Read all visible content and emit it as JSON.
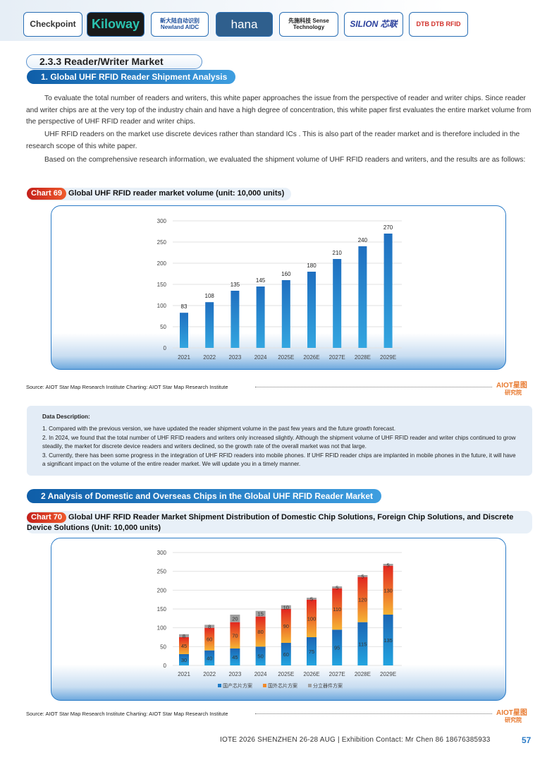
{
  "logos": [
    "Checkpoint",
    "Kiloway",
    "新大陆自动识别 Newland AIDC",
    "hana",
    "先施科技 Sense Technology",
    "SILION 芯联",
    "DTB DTB RFID"
  ],
  "section": {
    "title": "2.3.3 Reader/Writer Market",
    "sub1": "1. Global UHF RFID Reader Shipment Analysis",
    "sub2": "2 Analysis of Domestic and Overseas Chips in the Global UHF RFID Reader Market"
  },
  "paragraphs": [
    "To evaluate the total number of readers and writers, this white paper approaches the issue from the perspective of reader and writer chips. Since reader and writer chips are at the very top of the industry chain and have a high degree of concentration, this white paper first evaluates the entire market volume from the perspective of UHF RFID reader and writer chips.",
    "UHF RFID readers on the market use discrete devices rather than standard ICs . This is also part of the reader market and is therefore included in the research scope of this white paper.",
    "Based on the comprehensive research information, we evaluated the shipment volume of UHF RFID readers and writers, and the results are as follows:"
  ],
  "chart69": {
    "tag": "Chart 69",
    "title": "Global UHF RFID reader market volume (unit: 10,000 units)"
  },
  "chart70": {
    "tag": "Chart 70",
    "title": "Global UHF RFID Reader Market Shipment Distribution of Domestic Chip Solutions, Foreign Chip Solutions, and Discrete Device Solutions (Unit: 10,000 units)"
  },
  "source": "Source: AIOT Star Map Research Institute  Charting: AIOT Star Map Research Institute",
  "watermark": "AIOT星图 研究院",
  "description": {
    "title": "Data Description:",
    "items": [
      "1. Compared with the previous version, we have updated the reader shipment volume in the past few years and the future growth forecast.",
      "2. In 2024, we found that the total number of UHF RFID readers and writers only increased slightly. Although the shipment volume of UHF RFID reader and writer chips continued to grow steadily, the market for discrete device readers and writers declined, so the growth rate of the overall market was not that large.",
      "3. Currently, there has been some progress in the integration of UHF RFID readers into mobile phones. If UHF RFID reader chips are implanted in mobile phones in the future, it will have a significant impact on the volume of the entire reader market. We will update you in a timely manner."
    ]
  },
  "footer": {
    "text": "IOTE 2026 SHENZHEN 26-28 AUG  | Exhibition Contact:  Mr Chen 86 18676385933",
    "page": "57"
  },
  "chart_data": [
    {
      "type": "bar",
      "categories": [
        "2021",
        "2022",
        "2023",
        "2024",
        "2025E",
        "2026E",
        "2027E",
        "2028E",
        "2029E"
      ],
      "values": [
        83,
        108,
        135,
        145,
        160,
        180,
        210,
        240,
        270
      ],
      "ylim": [
        0,
        300
      ],
      "yticks": [
        0,
        50,
        100,
        150,
        200,
        250,
        300
      ],
      "grid": true,
      "colors": [
        "#1f6fc0",
        "#33a6e0"
      ]
    },
    {
      "type": "bar",
      "stacked": true,
      "categories": [
        "2021",
        "2022",
        "2023",
        "2024",
        "2025E",
        "2026E",
        "2027E",
        "2028E",
        "2029E"
      ],
      "ylim": [
        0,
        300
      ],
      "yticks": [
        0,
        50,
        100,
        150,
        200,
        250,
        300
      ],
      "grid": true,
      "legend": "bottom",
      "series": [
        {
          "name": "国产芯片方案",
          "values": [
            30,
            40,
            45,
            50,
            60,
            75,
            95,
            115,
            135
          ],
          "color": "#1f7cc8"
        },
        {
          "name": "国外芯片方案",
          "values": [
            45,
            60,
            70,
            80,
            90,
            100,
            110,
            120,
            130
          ],
          "color": "#f08a2a"
        },
        {
          "name": "分立器件方案",
          "values": [
            8,
            8,
            20,
            15,
            10,
            5,
            5,
            5,
            5
          ],
          "color": "#a0a0a0"
        }
      ]
    }
  ]
}
